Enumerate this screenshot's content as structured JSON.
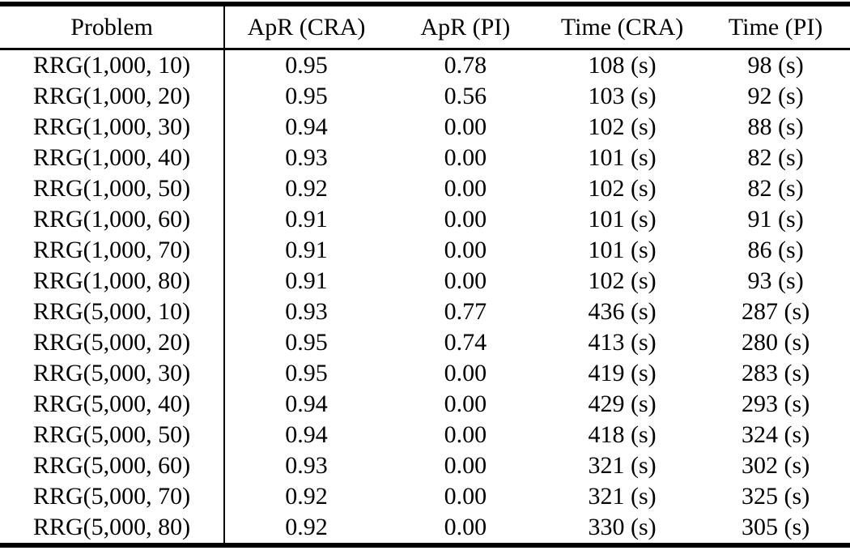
{
  "colors": {
    "background": "#ffffff",
    "text": "#000000",
    "rule": "#000000"
  },
  "table": {
    "columns": [
      "Problem",
      "ApR (CRA)",
      "ApR (PI)",
      "Time (CRA)",
      "Time (PI)"
    ],
    "rows": [
      [
        "RRG(1,000, 10)",
        "0.95",
        "0.78",
        "108 (s)",
        "98 (s)"
      ],
      [
        "RRG(1,000, 20)",
        "0.95",
        "0.56",
        "103 (s)",
        "92 (s)"
      ],
      [
        "RRG(1,000, 30)",
        "0.94",
        "0.00",
        "102 (s)",
        "88 (s)"
      ],
      [
        "RRG(1,000, 40)",
        "0.93",
        "0.00",
        "101 (s)",
        "82 (s)"
      ],
      [
        "RRG(1,000, 50)",
        "0.92",
        "0.00",
        "102 (s)",
        "82 (s)"
      ],
      [
        "RRG(1,000, 60)",
        "0.91",
        "0.00",
        "101 (s)",
        "91 (s)"
      ],
      [
        "RRG(1,000, 70)",
        "0.91",
        "0.00",
        "101 (s)",
        "86 (s)"
      ],
      [
        "RRG(1,000, 80)",
        "0.91",
        "0.00",
        "102 (s)",
        "93 (s)"
      ],
      [
        "RRG(5,000, 10)",
        "0.93",
        "0.77",
        "436 (s)",
        "287 (s)"
      ],
      [
        "RRG(5,000, 20)",
        "0.95",
        "0.74",
        "413 (s)",
        "280 (s)"
      ],
      [
        "RRG(5,000, 30)",
        "0.95",
        "0.00",
        "419 (s)",
        "283 (s)"
      ],
      [
        "RRG(5,000, 40)",
        "0.94",
        "0.00",
        "429 (s)",
        "293 (s)"
      ],
      [
        "RRG(5,000, 50)",
        "0.94",
        "0.00",
        "418 (s)",
        "324 (s)"
      ],
      [
        "RRG(5,000, 60)",
        "0.93",
        "0.00",
        "321 (s)",
        "302 (s)"
      ],
      [
        "RRG(5,000, 70)",
        "0.92",
        "0.00",
        "321 (s)",
        "325 (s)"
      ],
      [
        "RRG(5,000, 80)",
        "0.92",
        "0.00",
        "330 (s)",
        "305 (s)"
      ]
    ]
  },
  "chart_data": {
    "type": "table",
    "title": "",
    "columns": [
      "Problem",
      "ApR (CRA)",
      "ApR (PI)",
      "Time (CRA)",
      "Time (PI)"
    ],
    "series": [
      {
        "name": "ApR (CRA)",
        "values": [
          0.95,
          0.95,
          0.94,
          0.93,
          0.92,
          0.91,
          0.91,
          0.91,
          0.93,
          0.95,
          0.95,
          0.94,
          0.94,
          0.93,
          0.92,
          0.92
        ]
      },
      {
        "name": "ApR (PI)",
        "values": [
          0.78,
          0.56,
          0.0,
          0.0,
          0.0,
          0.0,
          0.0,
          0.0,
          0.77,
          0.74,
          0.0,
          0.0,
          0.0,
          0.0,
          0.0,
          0.0
        ]
      },
      {
        "name": "Time (CRA) seconds",
        "values": [
          108,
          103,
          102,
          101,
          102,
          101,
          101,
          102,
          436,
          413,
          419,
          429,
          418,
          321,
          321,
          330
        ]
      },
      {
        "name": "Time (PI) seconds",
        "values": [
          98,
          92,
          88,
          82,
          82,
          91,
          86,
          93,
          287,
          280,
          283,
          293,
          324,
          302,
          325,
          305
        ]
      }
    ],
    "categories": [
      "RRG(1,000, 10)",
      "RRG(1,000, 20)",
      "RRG(1,000, 30)",
      "RRG(1,000, 40)",
      "RRG(1,000, 50)",
      "RRG(1,000, 60)",
      "RRG(1,000, 70)",
      "RRG(1,000, 80)",
      "RRG(5,000, 10)",
      "RRG(5,000, 20)",
      "RRG(5,000, 30)",
      "RRG(5,000, 40)",
      "RRG(5,000, 50)",
      "RRG(5,000, 60)",
      "RRG(5,000, 70)",
      "RRG(5,000, 80)"
    ]
  }
}
